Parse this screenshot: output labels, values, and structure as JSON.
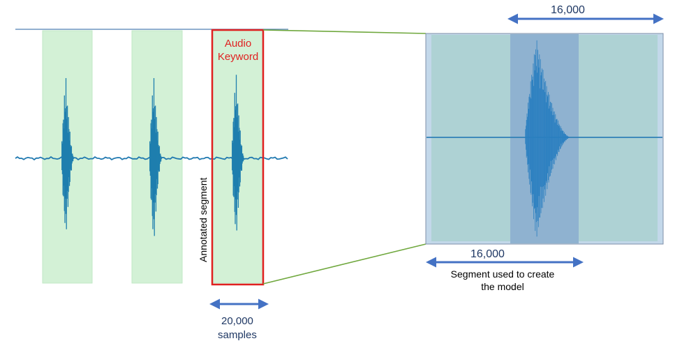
{
  "labels": {
    "audio_keyword": [
      "Audio",
      "Keyword"
    ],
    "annotated_segment": "Annotated segment",
    "top_dimension": "16,000",
    "inner_dimension": "16,000",
    "segment_caption": [
      "Segment used to create",
      "the model"
    ],
    "sample_count": "20,000",
    "sample_unit": "samples"
  },
  "colors": {
    "annotation_band": "#d3f1d6",
    "keyword_box": "#e02020",
    "waveform": "#2079b0",
    "zoom_panel_bg": "#aed2d4",
    "zoom_panel_highlight": "#8fb2d0",
    "connector": "#70a83e",
    "dimension_arrow": "#4472c4",
    "dimension_text": "#1f3864"
  },
  "icons": [
    "double-arrow-icon"
  ]
}
